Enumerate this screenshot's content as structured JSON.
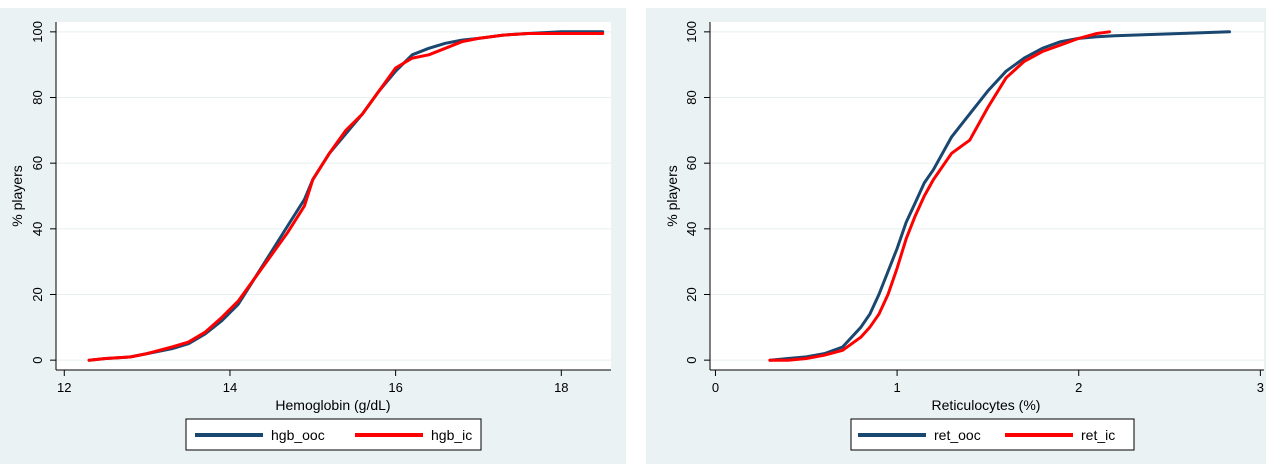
{
  "chart_data": [
    {
      "type": "line",
      "xlabel": "Hemoglobin (g/dL)",
      "ylabel": "% players",
      "xlim": [
        11.9,
        18.6
      ],
      "ylim": [
        -3,
        103
      ],
      "xticks": [
        12,
        14,
        16,
        18
      ],
      "yticks": [
        0,
        20,
        40,
        60,
        80,
        100
      ],
      "grid": true,
      "legend_position": "bottom",
      "series": [
        {
          "name": "hgb_ooc",
          "color": "#1a476f",
          "x": [
            12.3,
            12.5,
            12.8,
            13.0,
            13.3,
            13.5,
            13.7,
            13.9,
            14.1,
            14.3,
            14.5,
            14.7,
            14.9,
            15.0,
            15.2,
            15.4,
            15.6,
            15.8,
            16.0,
            16.2,
            16.4,
            16.6,
            16.8,
            17.0,
            17.3,
            17.6,
            18.0,
            18.5
          ],
          "y": [
            0,
            0.5,
            1,
            2,
            3.5,
            5,
            8,
            12,
            17,
            25,
            33,
            41,
            49,
            55,
            63,
            69,
            75,
            82,
            88,
            93,
            95,
            96.5,
            97.5,
            98,
            99,
            99.5,
            100,
            100
          ]
        },
        {
          "name": "hgb_ic",
          "color": "#ff0000",
          "x": [
            12.3,
            12.5,
            12.8,
            13.0,
            13.3,
            13.5,
            13.7,
            13.9,
            14.1,
            14.3,
            14.5,
            14.7,
            14.9,
            15.0,
            15.2,
            15.4,
            15.6,
            15.8,
            16.0,
            16.2,
            16.4,
            16.6,
            16.8,
            17.0,
            17.3,
            17.6,
            18.0,
            18.5
          ],
          "y": [
            0,
            0.5,
            1,
            2,
            4,
            5.5,
            8.5,
            13,
            18,
            25,
            32,
            39,
            47,
            55,
            63,
            70,
            75,
            82,
            89,
            92,
            93,
            95,
            97,
            98,
            99,
            99.5,
            99.5,
            99.5
          ]
        }
      ]
    },
    {
      "type": "line",
      "xlabel": "Reticulocytes (%)",
      "ylabel": "% players",
      "xlim": [
        -0.03,
        3.02
      ],
      "ylim": [
        -3,
        103
      ],
      "xticks": [
        0,
        1,
        2,
        3
      ],
      "yticks": [
        0,
        20,
        40,
        60,
        80,
        100
      ],
      "grid": true,
      "legend_position": "bottom",
      "series": [
        {
          "name": "ret_ooc",
          "color": "#1a476f",
          "x": [
            0.3,
            0.4,
            0.5,
            0.6,
            0.7,
            0.8,
            0.85,
            0.9,
            0.95,
            1.0,
            1.05,
            1.1,
            1.15,
            1.2,
            1.3,
            1.4,
            1.5,
            1.6,
            1.7,
            1.8,
            1.9,
            2.0,
            2.1,
            2.2,
            2.4,
            2.6,
            2.83
          ],
          "y": [
            0,
            0.5,
            1,
            2,
            4,
            10,
            14,
            20,
            27,
            34,
            42,
            48,
            54,
            58,
            68,
            75,
            82,
            88,
            92,
            95,
            97,
            98,
            98.5,
            98.8,
            99.2,
            99.6,
            100
          ]
        },
        {
          "name": "ret_ic",
          "color": "#ff0000",
          "x": [
            0.3,
            0.4,
            0.5,
            0.6,
            0.7,
            0.8,
            0.85,
            0.9,
            0.95,
            1.0,
            1.05,
            1.1,
            1.15,
            1.2,
            1.3,
            1.4,
            1.5,
            1.6,
            1.7,
            1.8,
            1.9,
            2.0,
            2.1,
            2.17
          ],
          "y": [
            0,
            0,
            0.5,
            1.5,
            3,
            7,
            10,
            14,
            20,
            28,
            37,
            44,
            50,
            55,
            63,
            67,
            77,
            86,
            91,
            94,
            96,
            98,
            99.5,
            100
          ]
        }
      ]
    }
  ]
}
